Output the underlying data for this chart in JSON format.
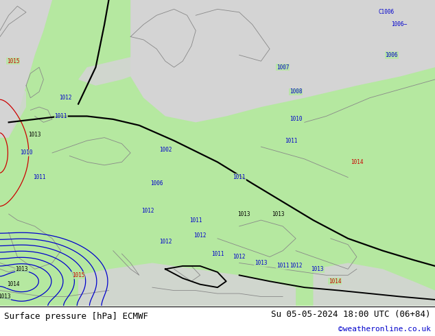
{
  "title_left": "Surface pressure [hPa] ECMWF",
  "title_right": "Su 05-05-2024 18:00 UTC (06+84)",
  "credit": "©weatheronline.co.uk",
  "bg_color": "#b5e8a0",
  "sea_color": "#d4d4d4",
  "blue_color": "#0000cc",
  "red_color": "#cc0000",
  "black_color": "#000000",
  "gray_color": "#888888"
}
